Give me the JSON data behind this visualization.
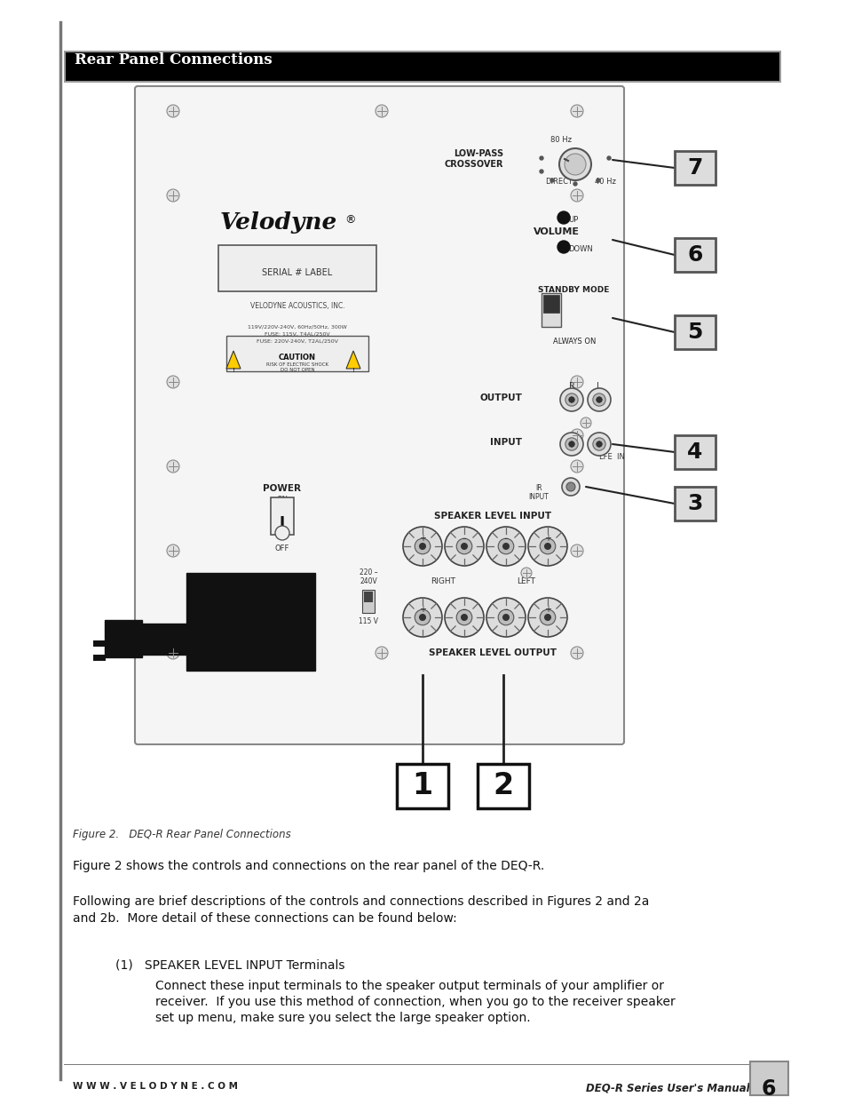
{
  "page_bg": "#ffffff",
  "left_bar_color": "#777777",
  "header_bg": "#000000",
  "header_border": "#888888",
  "header_text": "Rear Panel Connections",
  "header_text_color": "#ffffff",
  "panel_bg": "#f5f5f5",
  "panel_border": "#aaaaaa",
  "figure_caption": "Figure 2.   DEQ-R Rear Panel Connections",
  "body_text1": "Figure 2 shows the controls and connections on the rear panel of the DEQ-R.",
  "body_text2": "Following are brief descriptions of the controls and connections described in Figures 2 and 2a\nand 2b.  More detail of these connections can be found below:",
  "list_item_label": "(1)   SPEAKER LEVEL INPUT Terminals",
  "list_item_body1": "Connect these input terminals to the speaker output terminals of your amplifier or",
  "list_item_body2": "receiver.  If you use this method of connection, when you go to the receiver speaker",
  "list_item_body3": "set up menu, make sure you select the large speaker option.",
  "footer_left": "W W W . V E L O D Y N E . C O M",
  "footer_right": "DEQ-R Series User's Manual",
  "footer_page": "6"
}
